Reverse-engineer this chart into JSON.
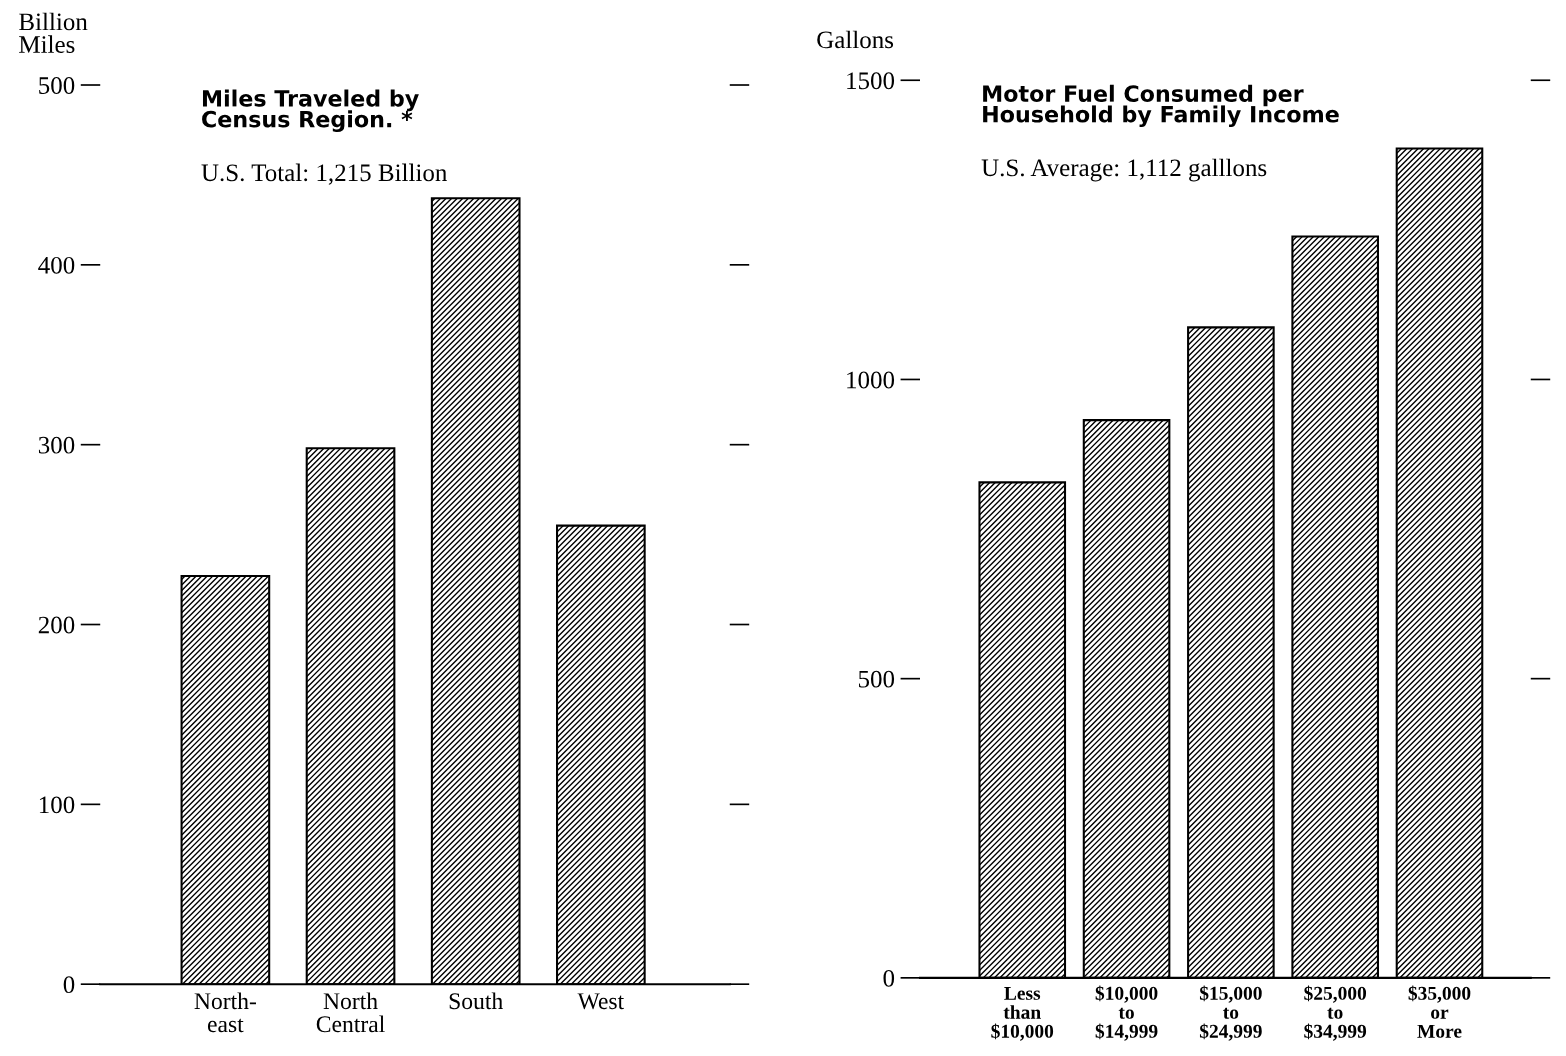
{
  "chart_data": [
    {
      "type": "bar",
      "title": "Miles Traveled by\nCensus Region. *",
      "subtitle": "U.S. Total: 1,215 Billion",
      "ylabel": "Billion\nMiles",
      "categories": [
        "North-\neast",
        "North\nCentral",
        "South",
        "West"
      ],
      "values": [
        227,
        298,
        437,
        255
      ],
      "color": "#000000",
      "ylim": [
        0,
        500
      ],
      "yticks": [
        0,
        100,
        200,
        300,
        400,
        500
      ],
      "grid": false,
      "legend": false
    },
    {
      "type": "bar",
      "title": "Motor Fuel Consumed per\nHousehold by Family Income",
      "subtitle": "U.S. Average: 1,112 galllons",
      "ylabel": "Gallons",
      "categories": [
        "Less\nthan\n$10,000",
        "$10,000\nto\n$14,999",
        "$15,000\nto\n$24,999",
        "$25,000\nto\n$34,999",
        "$35,000\nor\nMore"
      ],
      "values": [
        828,
        932,
        1087,
        1239,
        1386
      ],
      "color": "#000000",
      "ylim": [
        0,
        1500
      ],
      "yticks": [
        0,
        500,
        1000,
        1500
      ],
      "grid": false,
      "legend": false
    }
  ]
}
